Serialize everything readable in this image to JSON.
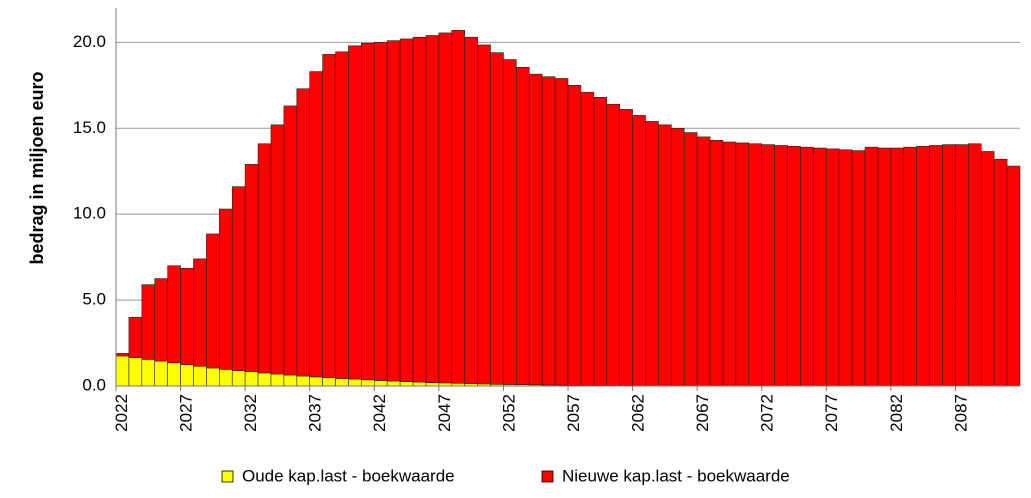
{
  "chart_data": {
    "type": "stacked_bar",
    "y_label": "bedrag in miljoen euro",
    "categories": [
      "2022",
      null,
      null,
      null,
      null,
      "2027",
      null,
      null,
      null,
      null,
      "2032",
      null,
      null,
      null,
      null,
      "2037",
      null,
      null,
      null,
      null,
      "2042",
      null,
      null,
      null,
      null,
      "2047",
      null,
      null,
      null,
      null,
      "2052",
      null,
      null,
      null,
      null,
      "2057",
      null,
      null,
      null,
      null,
      "2062",
      null,
      null,
      null,
      null,
      "2067",
      null,
      null,
      null,
      null,
      "2072",
      null,
      null,
      null,
      null,
      "2077",
      null,
      null,
      null,
      null,
      "2082",
      null,
      null,
      null,
      null,
      "2087",
      null,
      null,
      null,
      null
    ],
    "series": [
      {
        "name": "Oude kap.last - boekwaarde",
        "color": "#ffff00",
        "values": [
          1.75,
          1.65,
          1.55,
          1.45,
          1.35,
          1.25,
          1.15,
          1.05,
          0.97,
          0.9,
          0.83,
          0.76,
          0.7,
          0.64,
          0.58,
          0.53,
          0.48,
          0.44,
          0.4,
          0.36,
          0.32,
          0.29,
          0.26,
          0.23,
          0.2,
          0.18,
          0.16,
          0.14,
          0.12,
          0.1,
          0.09,
          0.08,
          0.07,
          0.06,
          0.05,
          0.04,
          0.03,
          0.03,
          0.02,
          0.02,
          0.01,
          0.01,
          0.01,
          0.01,
          0.01,
          0,
          0,
          0,
          0,
          0,
          0,
          0,
          0,
          0,
          0,
          0,
          0,
          0,
          0,
          0,
          0,
          0,
          0,
          0,
          0,
          0,
          0,
          0,
          0,
          0
        ]
      },
      {
        "name": "Nieuwe kap.last - boekwaarde",
        "color": "#ff0000",
        "values": [
          0.15,
          2.35,
          4.35,
          4.8,
          5.65,
          5.6,
          6.25,
          7.8,
          9.33,
          10.7,
          12.07,
          13.34,
          14.5,
          15.66,
          16.72,
          17.77,
          18.82,
          19.01,
          19.4,
          19.59,
          19.68,
          19.81,
          19.94,
          20.07,
          20.2,
          20.37,
          20.54,
          20.16,
          19.73,
          19.3,
          18.91,
          18.47,
          18.08,
          17.94,
          17.85,
          17.46,
          17.07,
          16.77,
          16.38,
          16.08,
          15.74,
          15.39,
          15.19,
          14.99,
          14.74,
          14.5,
          14.3,
          14.2,
          14.15,
          14.1,
          14.05,
          14.0,
          13.95,
          13.9,
          13.85,
          13.8,
          13.75,
          13.7,
          13.9,
          13.85,
          13.85,
          13.9,
          13.95,
          14.0,
          14.05,
          14.05,
          14.1,
          13.65,
          13.2,
          12.8
        ]
      }
    ],
    "ylim": [
      0,
      22
    ],
    "yticks": [
      {
        "value": 0,
        "label": "0.0"
      },
      {
        "value": 5,
        "label": "5.0"
      },
      {
        "value": 10,
        "label": "10.0"
      },
      {
        "value": 15,
        "label": "15.0"
      },
      {
        "value": 20,
        "label": "20.0"
      }
    ],
    "grid": true
  }
}
